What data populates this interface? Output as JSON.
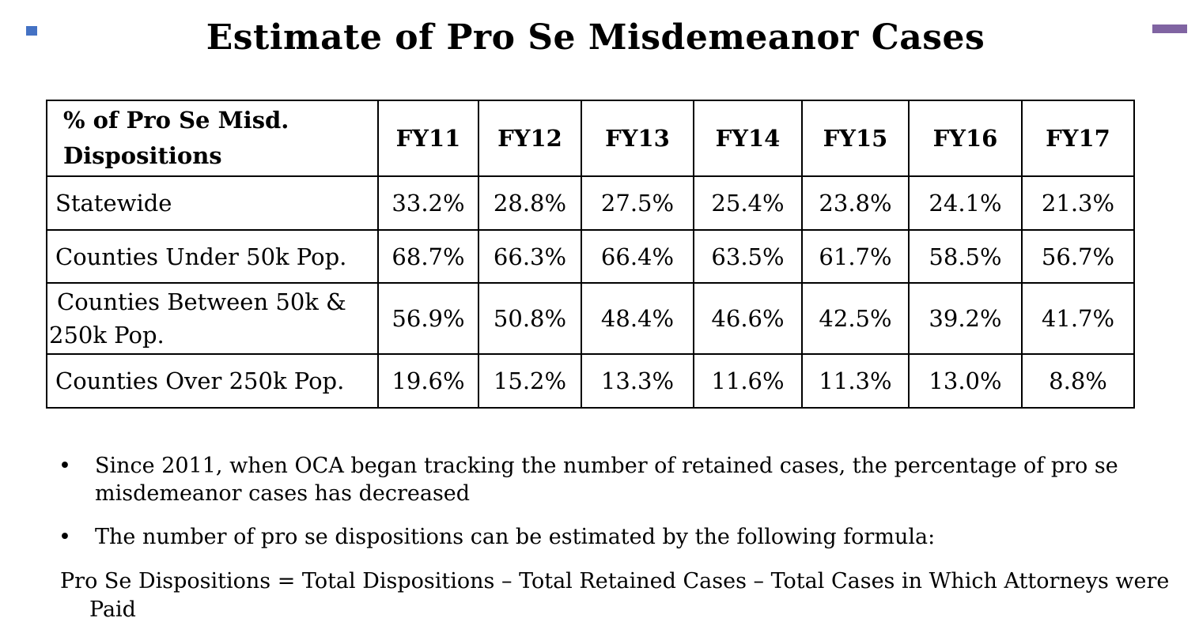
{
  "colors": {
    "accent_left": "#4472c4",
    "accent_right": "#8064a2"
  },
  "title": "Estimate of Pro Se Misdemeanor Cases",
  "table": {
    "corner_header": "% of Pro Se Misd. Dispositions",
    "columns": [
      "FY11",
      "FY12",
      "FY13",
      "FY14",
      "FY15",
      "FY16",
      "FY17"
    ],
    "rows": [
      {
        "label": "Statewide",
        "values": [
          "33.2%",
          "28.8%",
          "27.5%",
          "25.4%",
          "23.8%",
          "24.1%",
          "21.3%"
        ]
      },
      {
        "label": "Counties Under 50k Pop.",
        "values": [
          "68.7%",
          "66.3%",
          "66.4%",
          "63.5%",
          "61.7%",
          "58.5%",
          "56.7%"
        ]
      },
      {
        "label": "Counties Between 50k & 250k Pop.",
        "values": [
          "56.9%",
          "50.8%",
          "48.4%",
          "46.6%",
          "42.5%",
          "39.2%",
          "41.7%"
        ]
      },
      {
        "label": "Counties Over 250k Pop.",
        "values": [
          "19.6%",
          "15.2%",
          "13.3%",
          "11.6%",
          "11.3%",
          "13.0%",
          "8.8%"
        ]
      }
    ]
  },
  "bullets": [
    "Since 2011, when OCA began tracking the number of retained cases, the percentage of pro se misdemeanor cases has decreased",
    "The number of pro se dispositions can be estimated by the following formula:"
  ],
  "bullet_symbol": "•",
  "formula": "Pro Se Dispositions = Total Dispositions – Total Retained Cases – Total Cases in Which Attorneys were Paid"
}
